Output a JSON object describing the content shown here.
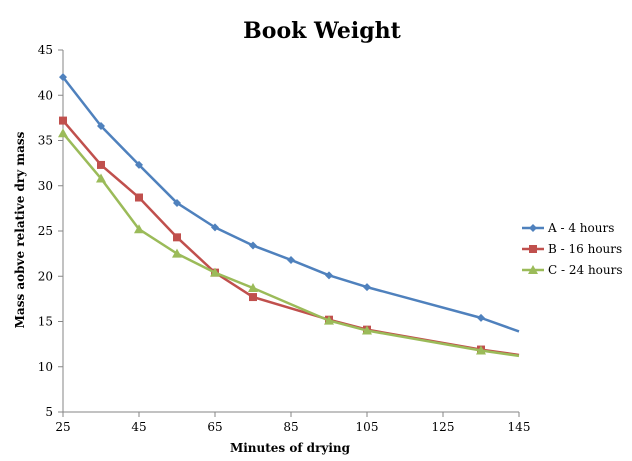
{
  "chart_data": {
    "type": "line",
    "title": "Book Weight",
    "xlabel": "Minutes of drying",
    "ylabel": "Mass aobve relative dry mass",
    "xlim": [
      25,
      145
    ],
    "ylim": [
      5,
      45
    ],
    "x_ticks": [
      "25",
      "45",
      "65",
      "85",
      "105",
      "125",
      "145"
    ],
    "y_ticks": [
      "5",
      "10",
      "15",
      "20",
      "25",
      "30",
      "35",
      "40",
      "45"
    ],
    "grid": false,
    "legend_position": "right",
    "series": [
      {
        "name": "A - 4 hours",
        "color": "#4F81BD",
        "marker": "diamond",
        "x": [
          25,
          35,
          45,
          55,
          65,
          75,
          85,
          95,
          105,
          135,
          145
        ],
        "y": [
          42.0,
          36.6,
          32.3,
          28.1,
          25.4,
          23.4,
          21.8,
          20.1,
          18.8,
          15.4,
          13.9
        ],
        "marked": [
          true,
          true,
          true,
          true,
          true,
          true,
          true,
          true,
          true,
          true,
          false
        ]
      },
      {
        "name": "B - 16 hours",
        "color": "#C0504D",
        "marker": "square",
        "x": [
          25,
          35,
          45,
          55,
          65,
          75,
          95,
          105,
          135,
          145
        ],
        "y": [
          37.2,
          32.3,
          28.7,
          24.3,
          20.4,
          17.7,
          15.2,
          14.1,
          11.9,
          11.3
        ],
        "marked": [
          true,
          true,
          true,
          true,
          true,
          true,
          true,
          true,
          true,
          false
        ]
      },
      {
        "name": "C - 24 hours",
        "color": "#9BBB59",
        "marker": "triangle",
        "x": [
          25,
          35,
          45,
          55,
          65,
          75,
          95,
          105,
          135,
          145
        ],
        "y": [
          35.8,
          30.8,
          25.2,
          22.5,
          20.4,
          18.7,
          15.1,
          14.0,
          11.8,
          11.2
        ],
        "marked": [
          true,
          true,
          true,
          true,
          true,
          true,
          true,
          true,
          true,
          false
        ]
      }
    ]
  }
}
